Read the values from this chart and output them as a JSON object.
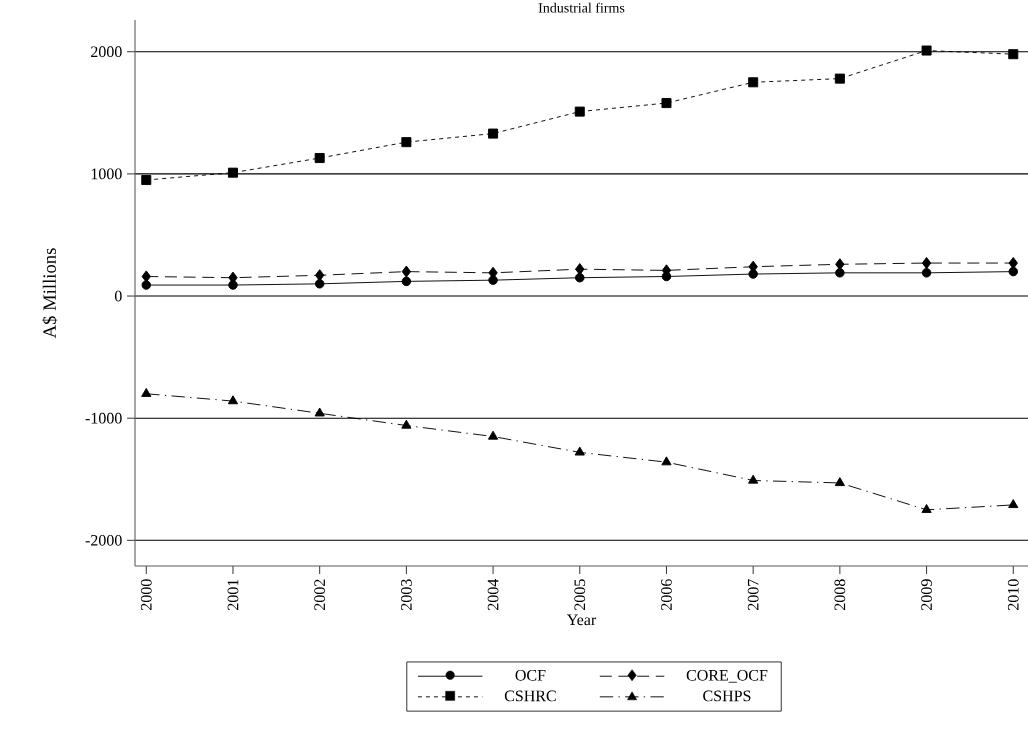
{
  "chart_data": {
    "type": "line",
    "title": "Industrial firms",
    "xlabel": "Year",
    "ylabel": "A$ Millions",
    "x": [
      2000,
      2001,
      2002,
      2003,
      2004,
      2005,
      2006,
      2007,
      2008,
      2009,
      2010
    ],
    "xlim": [
      1999.87,
      2010.17
    ],
    "xticks": [
      2000,
      2001,
      2002,
      2003,
      2004,
      2005,
      2006,
      2007,
      2008,
      2009,
      2010
    ],
    "ylim": [
      -2210,
      2260
    ],
    "yticks": [
      -2000,
      -1000,
      0,
      1000,
      2000
    ],
    "grid": "y",
    "legend": "bottom",
    "series": [
      {
        "name": "OCF",
        "color": "#000000",
        "marker": "circle",
        "line_style": "solid",
        "values": [
          90,
          90,
          100,
          120,
          130,
          150,
          160,
          180,
          190,
          190,
          200
        ]
      },
      {
        "name": "CORE_OCF",
        "color": "#000000",
        "marker": "diamond",
        "line_style": "dashed",
        "values": [
          160,
          150,
          170,
          200,
          190,
          220,
          210,
          240,
          260,
          270,
          270
        ]
      },
      {
        "name": "CSHRC",
        "color": "#000000",
        "marker": "square",
        "line_style": "dotted",
        "values": [
          950,
          1010,
          1130,
          1260,
          1330,
          1510,
          1580,
          1750,
          1780,
          2010,
          1980
        ]
      },
      {
        "name": "CSHPS",
        "color": "#000000",
        "marker": "triangle",
        "line_style": "dashdot",
        "values": [
          -800,
          -860,
          -960,
          -1060,
          -1150,
          -1280,
          -1360,
          -1510,
          -1530,
          -1750,
          -1710
        ]
      }
    ]
  }
}
